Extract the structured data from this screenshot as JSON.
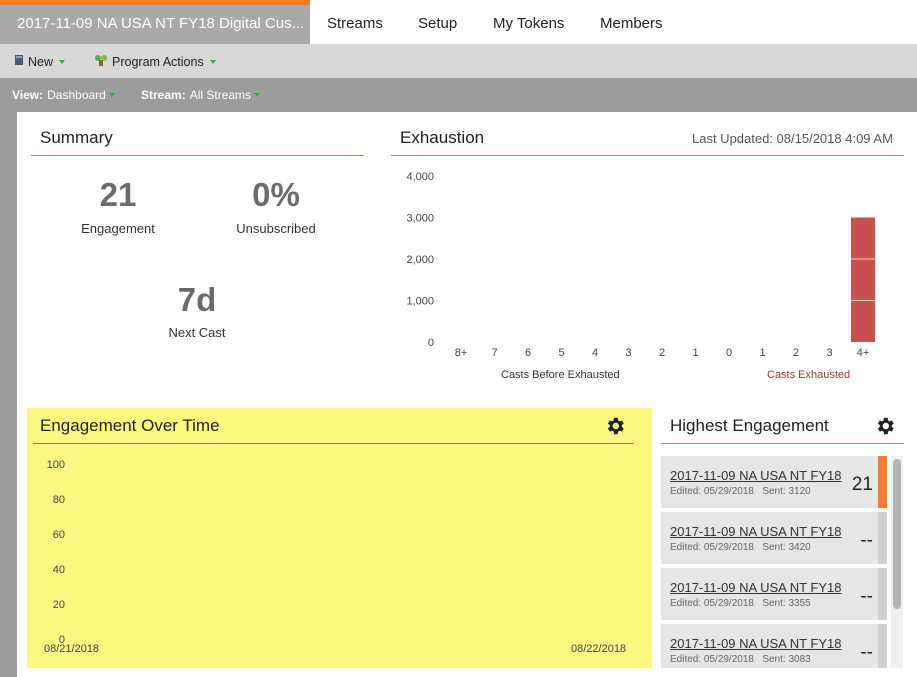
{
  "top_tabs": {
    "program": "2017-11-09 NA USA NT FY18 Digital Cus...",
    "streams": "Streams",
    "setup": "Setup",
    "my_tokens": "My Tokens",
    "members": "Members"
  },
  "toolbar": {
    "new_label": "New",
    "program_actions_label": "Program Actions"
  },
  "viewbar": {
    "view_key": "View:",
    "view_value": "Dashboard",
    "stream_key": "Stream:",
    "stream_value": "All Streams"
  },
  "summary": {
    "title": "Summary",
    "engagement_value": "21",
    "engagement_label": "Engagement",
    "unsubscribed_value": "0%",
    "unsubscribed_label": "Unsubscribed",
    "next_cast_value": "7d",
    "next_cast_label": "Next Cast"
  },
  "exhaustion": {
    "title": "Exhaustion",
    "last_updated": "Last Updated: 08/15/2018 4:09 AM",
    "left_group_label": "Casts Before Exhausted",
    "right_group_label": "Casts Exhausted",
    "colors": {
      "bar": "#c9504f",
      "right_label": "#a33b3b"
    }
  },
  "chart_data": [
    {
      "type": "bar",
      "title": "Exhaustion",
      "categories": [
        "8+",
        "7",
        "6",
        "5",
        "4",
        "3",
        "2",
        "1",
        "0",
        "1",
        "2",
        "3",
        "4+"
      ],
      "values": [
        0,
        0,
        0,
        0,
        0,
        0,
        0,
        0,
        0,
        0,
        0,
        0,
        3000
      ],
      "ylim": [
        0,
        4000
      ],
      "yticks": [
        "4,000",
        "3,000",
        "2,000",
        "1,000",
        "0"
      ],
      "grid": false
    },
    {
      "type": "line",
      "title": "Engagement Over Time",
      "x": [
        "08/21/2018",
        "08/22/2018"
      ],
      "series": [],
      "ylim": [
        0,
        100
      ],
      "yticks": [
        "100",
        "80",
        "60",
        "40",
        "20",
        "0"
      ]
    }
  ],
  "engagement_over_time": {
    "title": "Engagement Over Time",
    "x_start": "08/21/2018",
    "x_end": "08/22/2018"
  },
  "highest_engagement": {
    "title": "Highest Engagement",
    "items": [
      {
        "name": "2017-11-09 NA USA NT FY18",
        "edited": "Edited: 05/29/2018",
        "sent": "Sent: 3120",
        "value": "21",
        "bar_color": "#f07d2c"
      },
      {
        "name": "2017-11-09 NA USA NT FY18",
        "edited": "Edited: 05/29/2018",
        "sent": "Sent: 3420",
        "value": "--",
        "bar_color": "#cfcfcf"
      },
      {
        "name": "2017-11-09 NA USA NT FY18",
        "edited": "Edited: 05/29/2018",
        "sent": "Sent: 3355",
        "value": "--",
        "bar_color": "#cfcfcf"
      },
      {
        "name": "2017-11-09 NA USA NT FY18",
        "edited": "Edited: 05/29/2018",
        "sent": "Sent: 3083",
        "value": "--",
        "bar_color": "#cfcfcf"
      }
    ]
  }
}
